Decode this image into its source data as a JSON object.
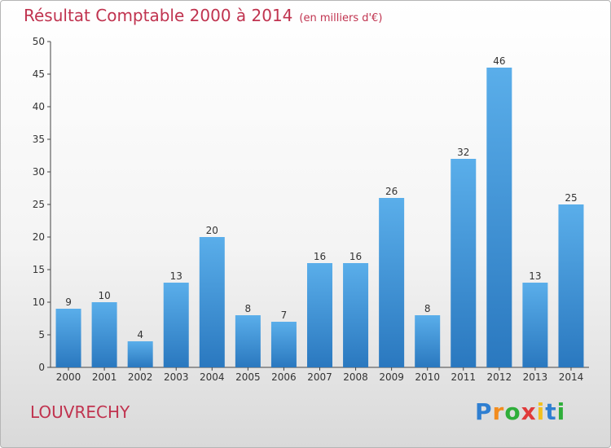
{
  "header": {
    "title": "Résultat Comptable 2000 à 2014",
    "subtitle": "(en milliers d'€)"
  },
  "footer": {
    "commune": "LOUVRECHY",
    "logo_letters": [
      "P",
      "r",
      "o",
      "x",
      "i",
      "t",
      "i"
    ],
    "logo_colors": [
      "#2f7fd1",
      "#f28c1e",
      "#2fae3a",
      "#e03a3a",
      "#f2c01e",
      "#2f7fd1",
      "#2fae3a"
    ]
  },
  "colors": {
    "bar_light": "#5aaeea",
    "bar_dark": "#2a78bf",
    "axis": "#444444",
    "grid": "#cfcfcf"
  },
  "chart_data": {
    "type": "bar",
    "title": "Résultat Comptable 2000 à 2014",
    "subtitle": "(en milliers d'€)",
    "categories": [
      "2000",
      "2001",
      "2002",
      "2003",
      "2004",
      "2005",
      "2006",
      "2007",
      "2008",
      "2009",
      "2010",
      "2011",
      "2012",
      "2013",
      "2014"
    ],
    "values": [
      9,
      10,
      4,
      13,
      20,
      8,
      7,
      16,
      16,
      26,
      8,
      32,
      46,
      13,
      25
    ],
    "ylim": [
      0,
      50
    ],
    "yticks": [
      0,
      5,
      10,
      15,
      20,
      25,
      30,
      35,
      40,
      45,
      50
    ],
    "grid": false,
    "data_labels": true
  }
}
